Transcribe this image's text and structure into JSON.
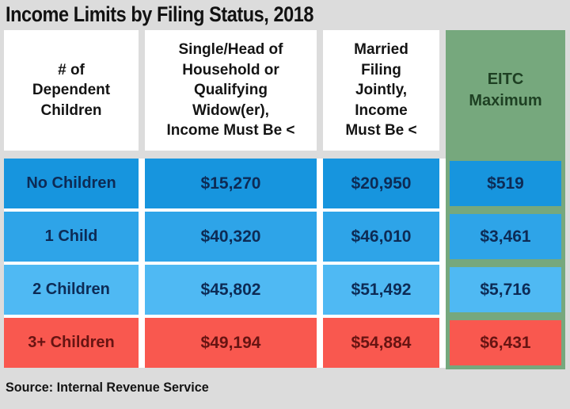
{
  "title": "Income Limits by Filing Status, 2018",
  "source": "Source: Internal Revenue Service",
  "table": {
    "headers_display": [
      "# of\nDependent\nChildren",
      "Single/Head of\nHousehold or\nQualifying\nWidow(er),\nIncome Must Be <",
      "Married\nFiling\nJointly,\nIncome\nMust Be <",
      "EITC\nMaximum"
    ]
  },
  "chart_data": {
    "type": "table",
    "title": "Income Limits by Filing Status, 2018",
    "columns": [
      "# of Dependent Children",
      "Single/Head of Household or Qualifying Widow(er), Income Must Be <",
      "Married Filing Jointly, Income Must Be <",
      "EITC Maximum"
    ],
    "rows": [
      [
        "No Children",
        "$15,270",
        "$20,950",
        "$519"
      ],
      [
        "1 Child",
        "$40,320",
        "$46,010",
        "$3,461"
      ],
      [
        "2 Children",
        "$45,802",
        "$51,492",
        "$5,716"
      ],
      [
        "3+ Children",
        "$49,194",
        "$54,884",
        "$6,431"
      ]
    ],
    "source": "Source: Internal Revenue Service"
  },
  "colors": {
    "page_bg": "#dcdcdc",
    "cell_white": "#ffffff",
    "green": "#76a87d",
    "green_text": "#1e4023",
    "row1_bg": "#1795de",
    "row2_bg": "#2ea4e8",
    "row3_bg": "#4fb9f3",
    "row4_bg": "#f9584f",
    "blue_text": "#0d2b55",
    "red_text": "#671412",
    "title_text": "#121212"
  }
}
